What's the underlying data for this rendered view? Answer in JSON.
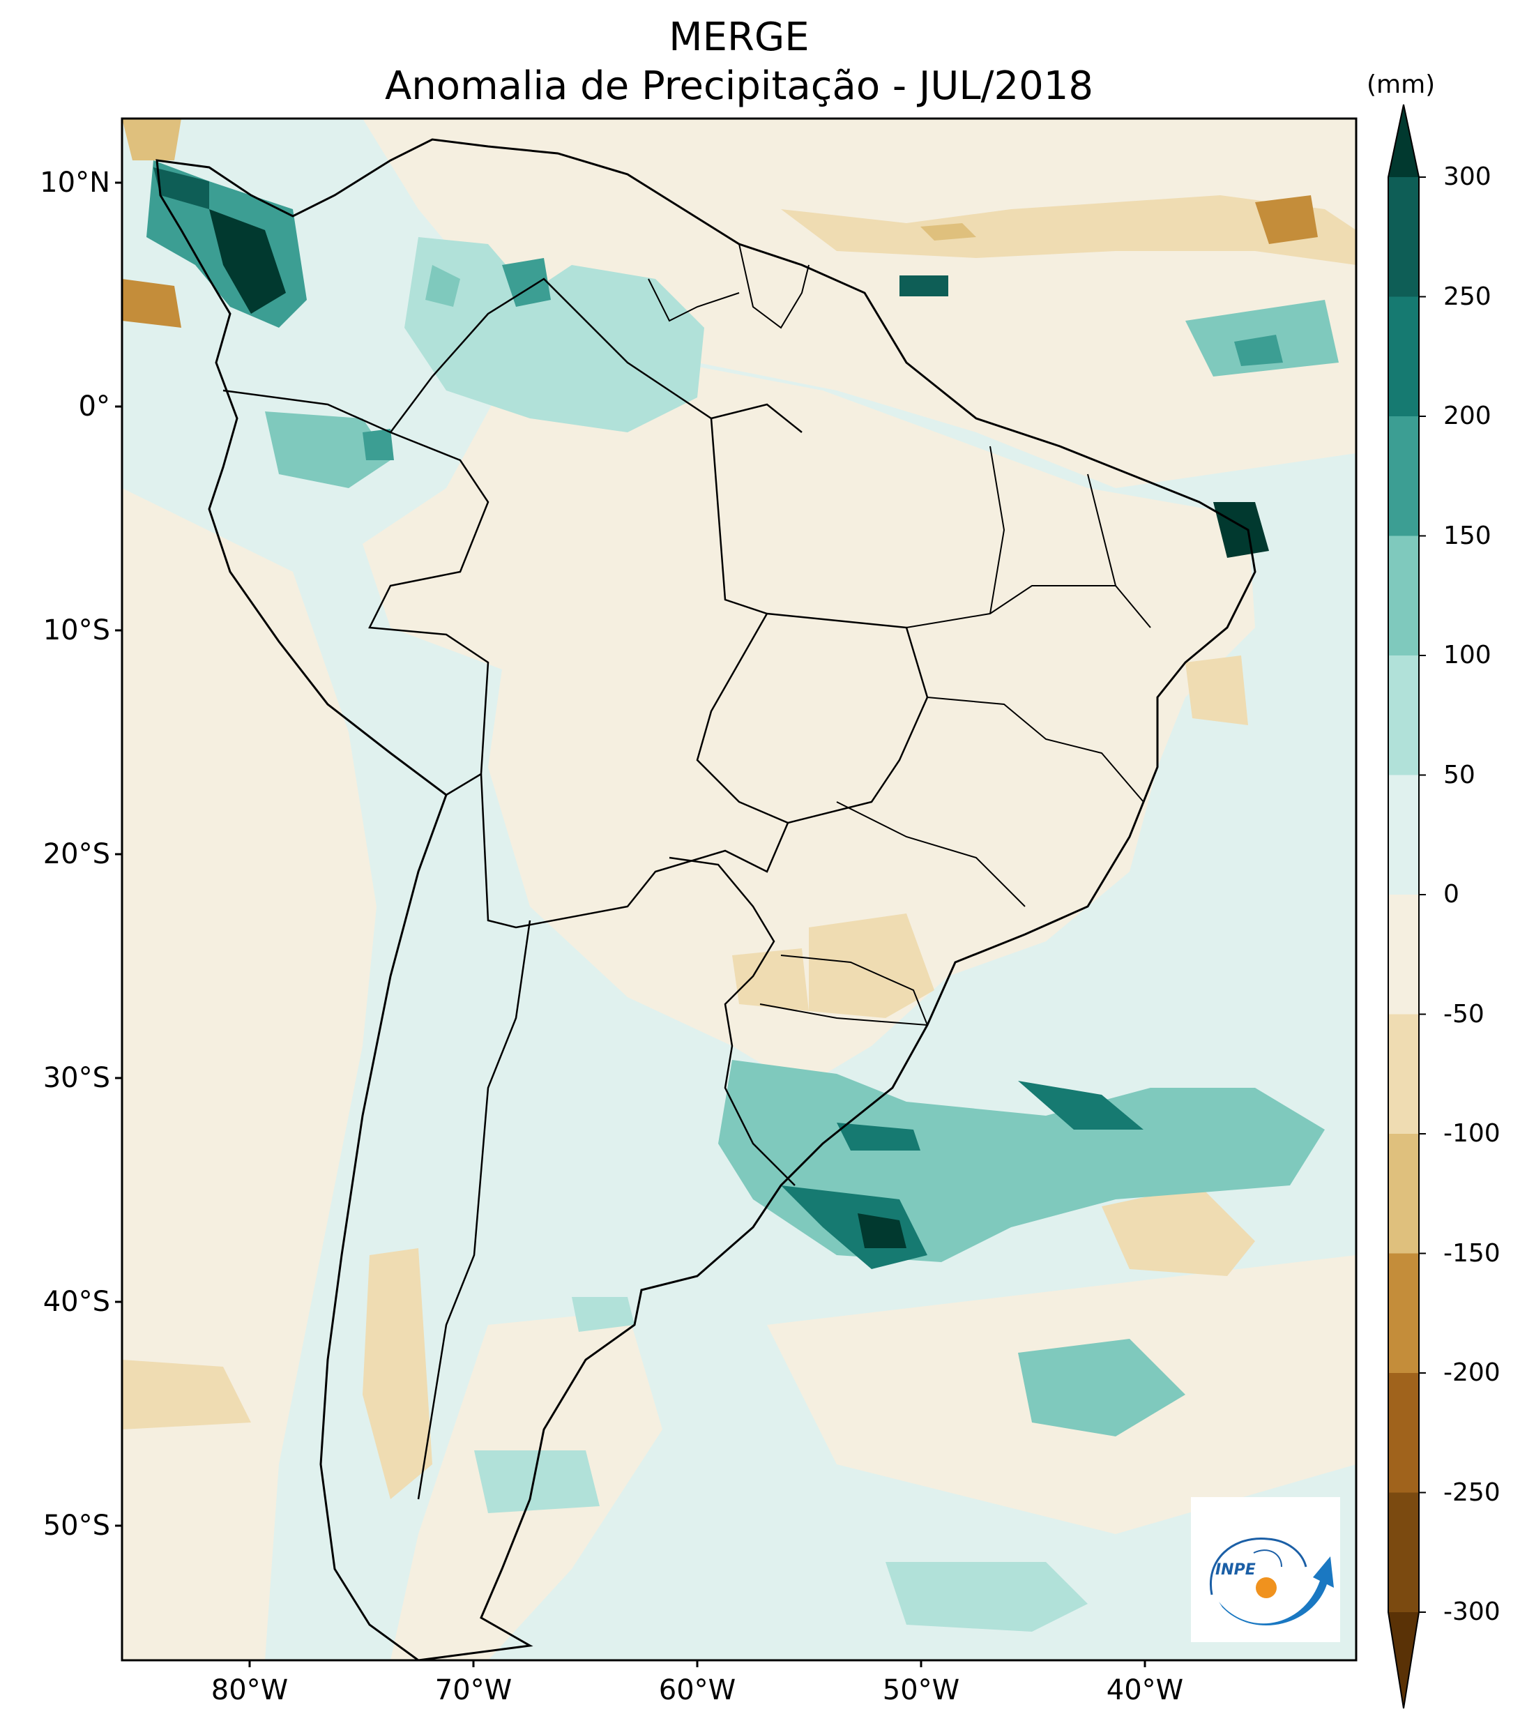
{
  "title": "MERGE",
  "subtitle": "Anomalia de Precipitação - JUL/2018",
  "lat_labels": [
    "10°N",
    "0°",
    "10°S",
    "20°S",
    "30°S",
    "40°S",
    "50°S"
  ],
  "lon_labels": [
    "80°W",
    "70°W",
    "60°W",
    "50°W",
    "40°W"
  ],
  "colorbar": {
    "unit": "(mm)",
    "ticks": [
      "300",
      "250",
      "200",
      "150",
      "100",
      "50",
      "0",
      "-50",
      "-100",
      "-150",
      "-200",
      "-250",
      "-300"
    ],
    "colors_top_to_bottom": [
      "#01392f",
      "#0e5e56",
      "#167a71",
      "#3c9e93",
      "#7fc9bd",
      "#b1e1d9",
      "#e0f1ee",
      "#f5efe0",
      "#efdcb2",
      "#dfc07d",
      "#c48d3a",
      "#a0631c",
      "#7b4a10",
      "#5a3206"
    ]
  },
  "logo_text": "INPE"
}
